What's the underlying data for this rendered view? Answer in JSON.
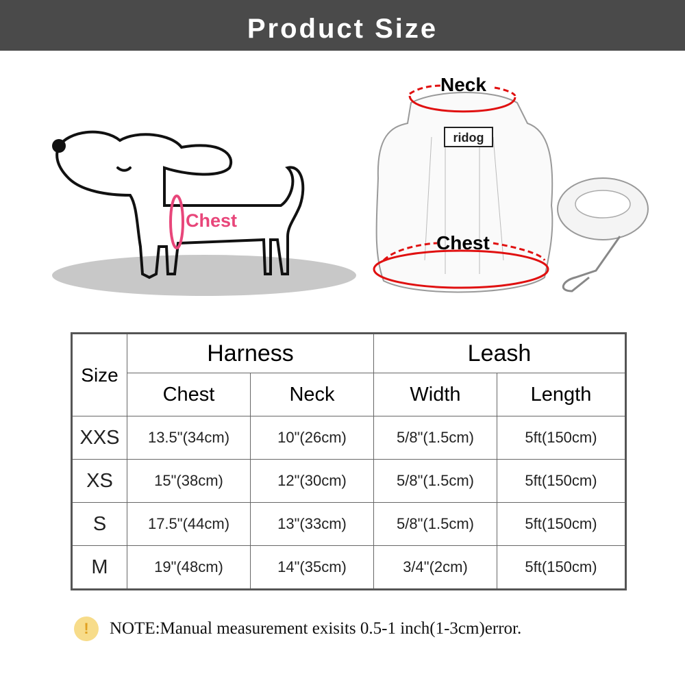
{
  "banner": {
    "title": "Product Size"
  },
  "illustrations": {
    "dog_chest_label": "Chest",
    "harness_neck_label": "Neck",
    "harness_chest_label": "Chest",
    "brand_logo": "ridog",
    "accent_pink": "#e8467a",
    "accent_red": "#e01010"
  },
  "table": {
    "size_header": "Size",
    "group_headers": [
      "Harness",
      "Leash"
    ],
    "columns": [
      "Chest",
      "Neck",
      "Width",
      "Length"
    ],
    "rows": [
      {
        "size": "XXS",
        "values": [
          "13.5\"(34cm)",
          "10\"(26cm)",
          "5/8\"(1.5cm)",
          "5ft(150cm)"
        ]
      },
      {
        "size": "XS",
        "values": [
          "15\"(38cm)",
          "12\"(30cm)",
          "5/8\"(1.5cm)",
          "5ft(150cm)"
        ]
      },
      {
        "size": "S",
        "values": [
          "17.5\"(44cm)",
          "13\"(33cm)",
          "5/8\"(1.5cm)",
          "5ft(150cm)"
        ]
      },
      {
        "size": "M",
        "values": [
          "19\"(48cm)",
          "14\"(35cm)",
          "3/4\"(2cm)",
          "5ft(150cm)"
        ]
      }
    ]
  },
  "note": {
    "icon": "exclamation-icon",
    "text": "NOTE:Manual measurement exisits 0.5-1 inch(1-3cm)error."
  }
}
